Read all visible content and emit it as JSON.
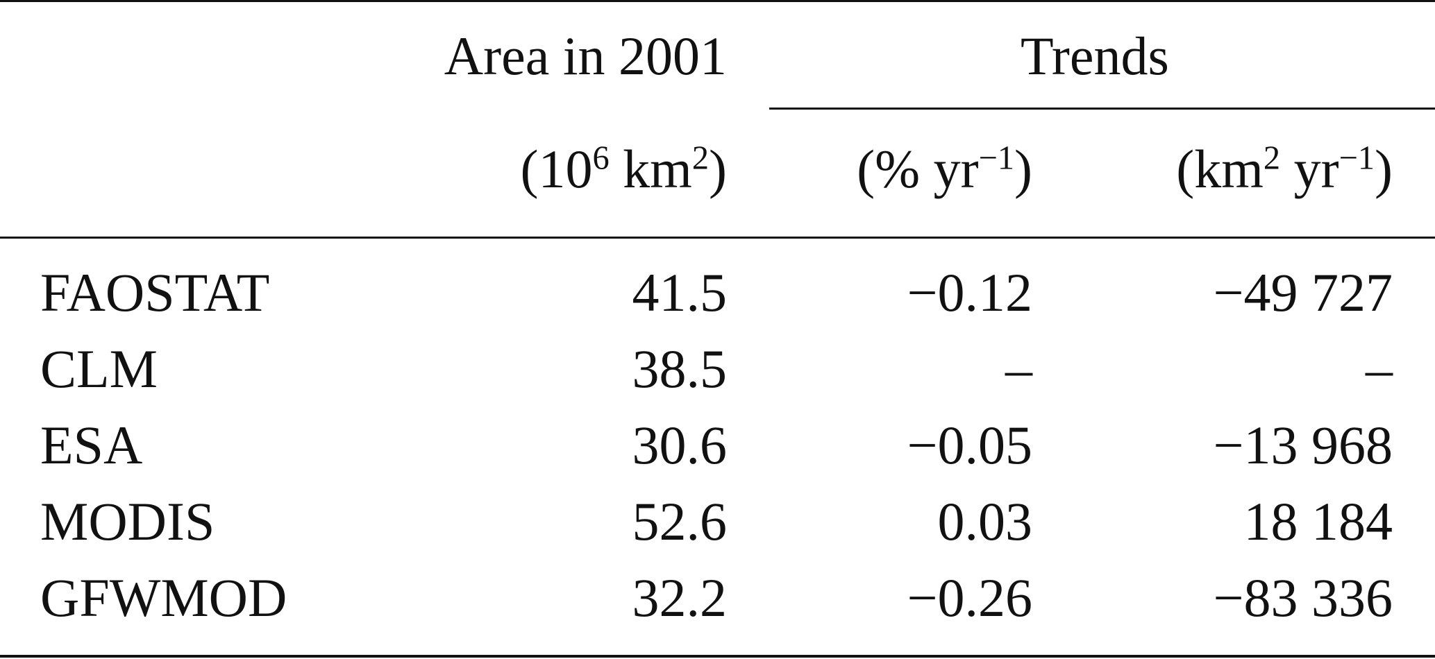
{
  "table": {
    "header": {
      "area": "Area in 2001",
      "trends": "Trends",
      "units": {
        "area": {
          "pre": "(10",
          "sup1": "6",
          "mid": " km",
          "sup2": "2",
          "post": ")"
        },
        "pct": {
          "pre": "(% yr",
          "sup": "−1",
          "post": ")"
        },
        "km": {
          "pre": "(km",
          "sup1": "2",
          "mid": " yr",
          "sup2": "−1",
          "post": ")"
        }
      }
    },
    "rows": [
      {
        "name": "FAOSTAT",
        "area": "41.5",
        "pct": "−0.12",
        "km": "−49 727"
      },
      {
        "name": "CLM",
        "area": "38.5",
        "pct": "–",
        "km": "–"
      },
      {
        "name": "ESA",
        "area": "30.6",
        "pct": "−0.05",
        "km": "−13 968"
      },
      {
        "name": "MODIS",
        "area": "52.6",
        "pct": "0.03",
        "km": "18 184"
      },
      {
        "name": "GFWMOD",
        "area": "32.2",
        "pct": "−0.26",
        "km": "−83 336"
      }
    ]
  }
}
